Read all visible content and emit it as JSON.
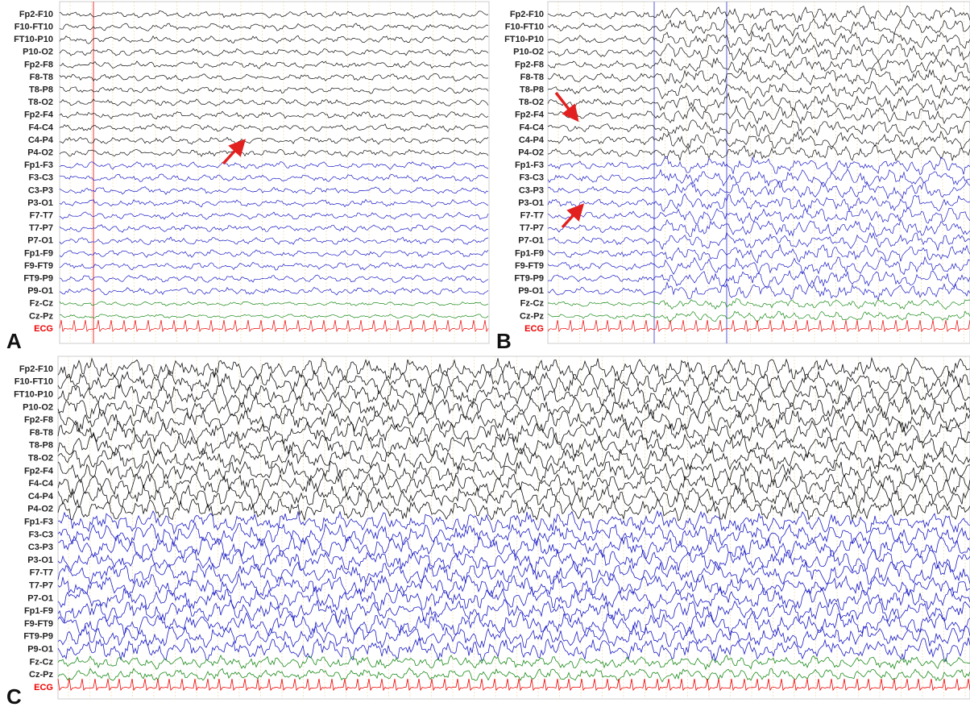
{
  "panels": [
    {
      "label": "A",
      "channels": [
        "Fp2-F10",
        "F10-FT10",
        "FT10-P10",
        "P10-O2",
        "Fp2-F8",
        "F8-T8",
        "T8-P8",
        "T8-O2",
        "Fp2-F4",
        "F4-C4",
        "C4-P4",
        "P4-O2",
        "Fp1-F3",
        "F3-C3",
        "C3-P3",
        "P3-O1",
        "F7-T7",
        "T7-P7",
        "P7-O1",
        "Fp1-F9",
        "F9-FT9",
        "FT9-P9",
        "P9-O1",
        "Fz-Cz",
        "Cz-Pz",
        "ECG"
      ]
    },
    {
      "label": "B",
      "channels": [
        "Fp2-F10",
        "F10-FT10",
        "FT10-P10",
        "P10-O2",
        "Fp2-F8",
        "F8-T8",
        "T8-P8",
        "T8-O2",
        "Fp2-F4",
        "F4-C4",
        "C4-P4",
        "P4-O2",
        "Fp1-F3",
        "F3-C3",
        "C3-P3",
        "P3-O1",
        "F7-T7",
        "T7-P7",
        "P7-O1",
        "Fp1-F9",
        "F9-FT9",
        "FT9-P9",
        "P9-O1",
        "Fz-Cz",
        "Cz-Pz",
        "ECG"
      ]
    },
    {
      "label": "C",
      "channels": [
        "Fp2-F10",
        "F10-FT10",
        "FT10-P10",
        "P10-O2",
        "Fp2-F8",
        "F8-T8",
        "T8-P8",
        "T8-O2",
        "Fp2-F4",
        "F4-C4",
        "C4-P4",
        "P4-O2",
        "Fp1-F3",
        "F3-C3",
        "C3-P3",
        "P3-O1",
        "F7-T7",
        "T7-P7",
        "P7-O1",
        "Fp1-F9",
        "F9-FT9",
        "FT9-P9",
        "P9-O1",
        "Fz-Cz",
        "Cz-Pz",
        "ECG"
      ]
    }
  ]
}
